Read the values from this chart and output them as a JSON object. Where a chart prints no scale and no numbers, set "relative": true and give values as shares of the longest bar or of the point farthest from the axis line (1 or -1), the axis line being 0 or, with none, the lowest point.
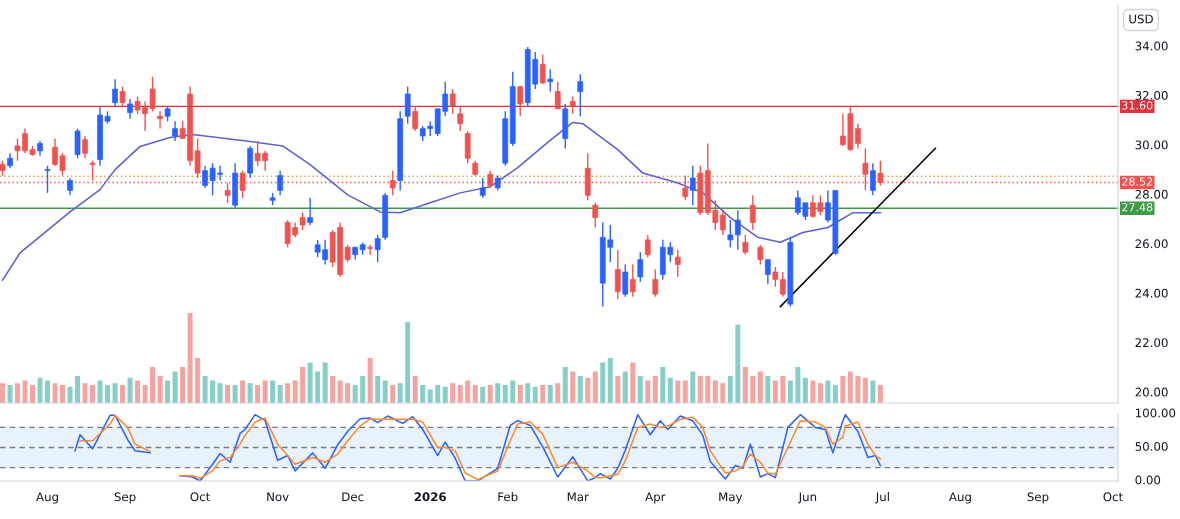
{
  "chart_data": [
    {
      "type": "candlestick",
      "tick_labels": "y",
      "xlim": [
        "2025-07-13",
        "2026-10-03"
      ],
      "ylim": [
        19.6,
        35.7
      ],
      "yticks": [
        {
          "value": 20,
          "label": "20.00"
        },
        {
          "value": 22,
          "label": "22.00"
        },
        {
          "value": 24,
          "label": "24.00"
        },
        {
          "value": 26,
          "label": "26.00"
        },
        {
          "value": 28,
          "label": "28.00"
        },
        {
          "value": 30,
          "label": "30.00"
        },
        {
          "value": 32,
          "label": "32.00"
        },
        {
          "value": 34,
          "label": "34.00"
        }
      ],
      "annotations": [
        "USD"
      ],
      "x": [
        "2025-07-14",
        "2025-07-17",
        "2025-07-20",
        "2025-07-23",
        "2025-07-26",
        "2025-07-29",
        "2025-08-01",
        "2025-08-04",
        "2025-08-07",
        "2025-08-10",
        "2025-08-13",
        "2025-08-16",
        "2025-08-19",
        "2025-08-22",
        "2025-08-25",
        "2025-08-28",
        "2025-08-31",
        "2025-09-03",
        "2025-09-06",
        "2025-09-09",
        "2025-09-12",
        "2025-09-15",
        "2025-09-18",
        "2025-09-21",
        "2025-09-24",
        "2025-09-27",
        "2025-09-30",
        "2025-10-03",
        "2025-10-06",
        "2025-10-09",
        "2025-10-12",
        "2025-10-15",
        "2025-10-18",
        "2025-10-21",
        "2025-10-24",
        "2025-10-27",
        "2025-10-30",
        "2025-11-02",
        "2025-11-05",
        "2025-11-08",
        "2025-11-11",
        "2025-11-14",
        "2025-11-17",
        "2025-11-20",
        "2025-11-23",
        "2025-11-26",
        "2025-11-29",
        "2025-12-02",
        "2025-12-05",
        "2025-12-08",
        "2025-12-11",
        "2025-12-14",
        "2025-12-17",
        "2025-12-20",
        "2025-12-23",
        "2025-12-26",
        "2025-12-29",
        "2026-01-01",
        "2026-01-04",
        "2026-01-07",
        "2026-01-10",
        "2026-01-13",
        "2026-01-16",
        "2026-01-19",
        "2026-01-22",
        "2026-01-25",
        "2026-01-28",
        "2026-01-31",
        "2026-02-03",
        "2026-02-06",
        "2026-02-09",
        "2026-02-12",
        "2026-02-15",
        "2026-02-18",
        "2026-02-21",
        "2026-02-24",
        "2026-02-27",
        "2026-03-02",
        "2026-03-05",
        "2026-03-08",
        "2026-03-11",
        "2026-03-14",
        "2026-03-17",
        "2026-03-20",
        "2026-03-23",
        "2026-03-26",
        "2026-03-29",
        "2026-04-01",
        "2026-04-04",
        "2026-04-07",
        "2026-04-10",
        "2026-04-13",
        "2026-04-16",
        "2026-04-19",
        "2026-04-22",
        "2026-04-25",
        "2026-04-28",
        "2026-05-01",
        "2026-05-04",
        "2026-05-07",
        "2026-05-10",
        "2026-05-13",
        "2026-05-16",
        "2026-05-19",
        "2026-05-22",
        "2026-05-25",
        "2026-05-28",
        "2026-05-31",
        "2026-06-03",
        "2026-06-06",
        "2026-06-09",
        "2026-06-12",
        "2026-06-15",
        "2026-06-18",
        "2026-06-21",
        "2026-06-24",
        "2026-06-27",
        "2026-06-30"
      ],
      "ohlc": [
        [
          29.25,
          29.4,
          28.8,
          29.0
        ],
        [
          29.2,
          29.7,
          29.1,
          29.5
        ],
        [
          30.0,
          30.3,
          29.4,
          29.8
        ],
        [
          30.5,
          30.7,
          29.7,
          29.8
        ],
        [
          29.85,
          30.0,
          29.6,
          29.65
        ],
        [
          29.8,
          30.2,
          29.6,
          30.1
        ],
        [
          29.0,
          29.2,
          28.1,
          29.05
        ],
        [
          29.95,
          30.3,
          29.2,
          29.25
        ],
        [
          29.6,
          29.7,
          28.8,
          29.0
        ],
        [
          28.2,
          28.7,
          28.0,
          28.6
        ],
        [
          29.65,
          30.7,
          29.5,
          30.6
        ],
        [
          30.25,
          30.4,
          29.5,
          29.7
        ],
        [
          29.3,
          29.4,
          28.6,
          29.25
        ],
        [
          29.45,
          31.6,
          29.2,
          31.25
        ],
        [
          31.0,
          31.4,
          30.9,
          31.2
        ],
        [
          31.75,
          32.7,
          31.6,
          32.3
        ],
        [
          32.2,
          32.4,
          31.6,
          31.75
        ],
        [
          31.35,
          31.9,
          31.1,
          31.7
        ],
        [
          31.8,
          32.0,
          31.3,
          31.45
        ],
        [
          31.55,
          31.8,
          30.6,
          31.3
        ],
        [
          32.3,
          32.8,
          31.4,
          31.5
        ],
        [
          31.2,
          31.4,
          30.7,
          31.1
        ],
        [
          31.2,
          31.6,
          31.0,
          31.5
        ],
        [
          30.4,
          31.0,
          30.2,
          30.7
        ],
        [
          30.7,
          31.0,
          30.3,
          30.3
        ],
        [
          32.1,
          32.4,
          29.2,
          29.4
        ],
        [
          29.8,
          30.3,
          28.7,
          28.9
        ],
        [
          28.4,
          29.2,
          28.3,
          29.0
        ],
        [
          28.6,
          29.3,
          28.0,
          29.1
        ],
        [
          28.85,
          29.2,
          28.6,
          28.9
        ],
        [
          28.2,
          28.5,
          27.7,
          28.0
        ],
        [
          27.6,
          29.3,
          27.5,
          28.9
        ],
        [
          28.9,
          29.0,
          27.9,
          28.2
        ],
        [
          28.9,
          30.0,
          28.7,
          29.9
        ],
        [
          29.7,
          30.2,
          29.2,
          29.4
        ],
        [
          29.7,
          29.8,
          29.0,
          29.4
        ],
        [
          27.8,
          28.1,
          27.6,
          27.9
        ],
        [
          28.2,
          29.0,
          28.0,
          28.8
        ],
        [
          26.9,
          27.0,
          25.9,
          26.05
        ],
        [
          26.7,
          26.9,
          26.3,
          26.4
        ],
        [
          27.1,
          27.3,
          26.6,
          26.8
        ],
        [
          26.9,
          27.9,
          26.8,
          27.1
        ],
        [
          25.7,
          26.2,
          25.5,
          26.0
        ],
        [
          25.4,
          26.2,
          25.2,
          25.8
        ],
        [
          26.5,
          26.6,
          25.1,
          25.3
        ],
        [
          26.7,
          26.9,
          24.7,
          24.8
        ],
        [
          25.9,
          26.0,
          25.3,
          25.4
        ],
        [
          25.6,
          25.9,
          25.4,
          25.9
        ],
        [
          25.8,
          26.1,
          25.6,
          26.0
        ],
        [
          25.9,
          26.0,
          25.6,
          25.85
        ],
        [
          25.8,
          26.4,
          25.3,
          26.25
        ],
        [
          26.3,
          28.1,
          26.2,
          28.0
        ],
        [
          28.6,
          29.0,
          28.0,
          28.3
        ],
        [
          28.6,
          31.4,
          28.2,
          31.1
        ],
        [
          31.2,
          32.4,
          30.9,
          32.1
        ],
        [
          31.4,
          31.6,
          30.6,
          30.7
        ],
        [
          30.4,
          30.8,
          30.2,
          30.7
        ],
        [
          30.7,
          31.0,
          30.4,
          30.8
        ],
        [
          30.5,
          31.5,
          30.4,
          31.5
        ],
        [
          31.4,
          32.6,
          31.2,
          32.1
        ],
        [
          32.1,
          32.3,
          31.3,
          31.6
        ],
        [
          31.3,
          31.6,
          30.6,
          30.9
        ],
        [
          30.5,
          30.6,
          29.3,
          29.5
        ],
        [
          29.3,
          29.4,
          28.8,
          28.85
        ],
        [
          28.0,
          28.7,
          27.9,
          28.3
        ],
        [
          28.85,
          29.0,
          28.3,
          28.4
        ],
        [
          28.3,
          28.8,
          28.2,
          28.7
        ],
        [
          29.3,
          31.4,
          29.2,
          31.1
        ],
        [
          30.1,
          33.0,
          30.0,
          32.4
        ],
        [
          32.4,
          32.4,
          31.2,
          31.7
        ],
        [
          31.75,
          34.0,
          31.6,
          33.9
        ],
        [
          32.5,
          33.8,
          32.3,
          33.5
        ],
        [
          33.3,
          33.7,
          32.5,
          32.55
        ],
        [
          32.6,
          33.1,
          32.2,
          32.7
        ],
        [
          32.2,
          32.6,
          31.5,
          31.5
        ],
        [
          30.3,
          31.7,
          29.9,
          31.5
        ],
        [
          31.8,
          32.0,
          31.3,
          31.6
        ],
        [
          32.2,
          32.9,
          31.2,
          32.6
        ],
        [
          29.1,
          29.7,
          27.8,
          28.0
        ],
        [
          27.6,
          27.7,
          26.7,
          27.1
        ],
        [
          24.45,
          26.9,
          23.5,
          26.3
        ],
        [
          25.9,
          26.8,
          25.3,
          26.2
        ],
        [
          25.0,
          25.8,
          23.8,
          24.1
        ],
        [
          24.0,
          25.2,
          23.9,
          24.9
        ],
        [
          24.6,
          25.2,
          23.9,
          24.1
        ],
        [
          24.7,
          25.7,
          24.5,
          25.4
        ],
        [
          26.2,
          26.4,
          25.5,
          25.6
        ],
        [
          24.6,
          25.0,
          23.9,
          24.0
        ],
        [
          24.8,
          26.2,
          24.6,
          25.9
        ],
        [
          25.6,
          26.1,
          25.3,
          25.9
        ],
        [
          25.5,
          25.8,
          24.7,
          25.2
        ],
        [
          28.3,
          28.8,
          27.8,
          27.95
        ],
        [
          28.2,
          29.2,
          27.6,
          28.7
        ],
        [
          28.9,
          29.2,
          27.2,
          27.3
        ],
        [
          29.0,
          30.1,
          27.2,
          27.3
        ],
        [
          27.4,
          27.8,
          26.6,
          26.9
        ],
        [
          27.2,
          27.4,
          26.4,
          26.6
        ],
        [
          26.2,
          27.0,
          25.9,
          26.4
        ],
        [
          26.4,
          27.4,
          25.8,
          27.0
        ],
        [
          26.1,
          26.4,
          25.6,
          25.7
        ],
        [
          27.6,
          28.0,
          26.6,
          26.9
        ],
        [
          25.9,
          26.0,
          25.2,
          25.4
        ],
        [
          24.8,
          25.4,
          24.4,
          25.4
        ],
        [
          24.9,
          25.1,
          24.3,
          24.6
        ],
        [
          24.6,
          24.9,
          23.9,
          24.0
        ],
        [
          23.6,
          26.3,
          23.5,
          26.1
        ],
        [
          27.3,
          28.2,
          27.2,
          27.9
        ],
        [
          27.15,
          27.7,
          27.0,
          27.7
        ],
        [
          27.7,
          28.0,
          27.1,
          27.15
        ],
        [
          27.7,
          28.0,
          27.2,
          27.35
        ],
        [
          27.0,
          28.2,
          26.9,
          27.7
        ],
        [
          25.65,
          28.2,
          25.6,
          28.2
        ],
        [
          30.4,
          31.3,
          30.0,
          30.05
        ],
        [
          31.3,
          31.6,
          29.8,
          29.85
        ],
        [
          30.7,
          30.9,
          29.9,
          30.1
        ],
        [
          29.3,
          29.9,
          28.2,
          28.85
        ],
        [
          28.2,
          29.3,
          28.0,
          29.0
        ],
        [
          28.9,
          29.4,
          28.4,
          28.52
        ]
      ],
      "colors": [
        "#ef5350",
        "#2962ff",
        "#ef5350",
        "#ef5350",
        "#ef5350",
        "#2962ff",
        "#2962ff",
        "#ef5350",
        "#ef5350",
        "#2962ff",
        "#2962ff",
        "#ef5350",
        "#ef5350",
        "#2962ff",
        "#2962ff",
        "#2962ff",
        "#ef5350",
        "#2962ff",
        "#ef5350",
        "#ef5350",
        "#ef5350",
        "#ef5350",
        "#2962ff",
        "#2962ff",
        "#ef5350",
        "#ef5350",
        "#ef5350",
        "#2962ff",
        "#2962ff",
        "#2962ff",
        "#ef5350",
        "#2962ff",
        "#ef5350",
        "#2962ff",
        "#ef5350",
        "#ef5350",
        "#2962ff",
        "#2962ff",
        "#ef5350",
        "#ef5350",
        "#ef5350",
        "#2962ff",
        "#2962ff",
        "#2962ff",
        "#ef5350",
        "#ef5350",
        "#ef5350",
        "#2962ff",
        "#2962ff",
        "#ef5350",
        "#2962ff",
        "#2962ff",
        "#ef5350",
        "#2962ff",
        "#2962ff",
        "#ef5350",
        "#2962ff",
        "#2962ff",
        "#2962ff",
        "#2962ff",
        "#ef5350",
        "#ef5350",
        "#ef5350",
        "#ef5350",
        "#2962ff",
        "#ef5350",
        "#2962ff",
        "#2962ff",
        "#2962ff",
        "#ef5350",
        "#2962ff",
        "#2962ff",
        "#ef5350",
        "#2962ff",
        "#ef5350",
        "#2962ff",
        "#ef5350",
        "#2962ff",
        "#ef5350",
        "#ef5350",
        "#2962ff",
        "#2962ff",
        "#ef5350",
        "#2962ff",
        "#ef5350",
        "#2962ff",
        "#ef5350",
        "#ef5350",
        "#2962ff",
        "#2962ff",
        "#ef5350",
        "#ef5350",
        "#2962ff",
        "#ef5350",
        "#ef5350",
        "#ef5350",
        "#ef5350",
        "#2962ff",
        "#2962ff",
        "#ef5350",
        "#ef5350",
        "#ef5350",
        "#2962ff",
        "#ef5350",
        "#ef5350",
        "#2962ff",
        "#2962ff",
        "#2962ff",
        "#ef5350",
        "#ef5350",
        "#2962ff",
        "#2962ff",
        "#ef5350",
        "#ef5350",
        "#ef5350",
        "#ef5350",
        "#2962ff",
        "#ef5350"
      ],
      "series": [
        {
          "type": "line",
          "color": "#5b5fd9",
          "x": [
            "2025-07-14",
            "2025-07-21",
            "2025-08-10",
            "2025-08-22",
            "2025-08-28",
            "2025-09-07",
            "2025-09-19",
            "2025-09-28",
            "2025-10-21",
            "2025-11-03",
            "2025-11-14",
            "2025-11-29",
            "2025-12-12",
            "2025-12-20",
            "2026-01-01",
            "2026-01-13",
            "2026-01-25",
            "2026-02-05",
            "2026-02-17",
            "2026-02-27",
            "2026-03-03",
            "2026-03-17",
            "2026-03-27",
            "2026-04-10",
            "2026-04-20",
            "2026-05-01",
            "2026-05-12",
            "2026-05-21",
            "2026-05-30",
            "2026-06-09",
            "2026-06-19",
            "2026-06-30"
          ],
          "values": [
            24.57,
            25.67,
            27.33,
            28.23,
            29.04,
            29.98,
            30.34,
            30.46,
            30.18,
            30.0,
            29.24,
            28.02,
            27.33,
            27.3,
            27.7,
            28.1,
            28.35,
            29.12,
            30.14,
            30.95,
            30.9,
            29.85,
            28.9,
            28.5,
            28.1,
            27.1,
            26.3,
            26.1,
            26.5,
            26.7,
            27.3,
            27.3
          ]
        },
        {
          "type": "line",
          "color": "#000000",
          "x": [
            "2026-05-21",
            "2026-07-22"
          ],
          "values": [
            23.5,
            29.9
          ]
        }
      ],
      "ref_lines": [
        {
          "axis": "y",
          "value": 31.6,
          "label": "31.60",
          "color": "#e0323c"
        },
        {
          "axis": "y",
          "value": 28.77,
          "color": "#f0a050",
          "line_style": "dotted"
        },
        {
          "axis": "y",
          "value": 28.52,
          "label": "28.52",
          "color": "#ef5350",
          "line_style": "dotted"
        },
        {
          "axis": "y",
          "value": 27.48,
          "label": "27.48",
          "color": "#3d9a47"
        }
      ]
    },
    {
      "type": "bar",
      "relative": true,
      "tick_labels": false,
      "xlim": [
        "2025-07-13",
        "2026-10-03"
      ],
      "x": [
        "2025-07-14",
        "2025-07-17",
        "2025-07-20",
        "2025-07-23",
        "2025-07-26",
        "2025-07-29",
        "2025-08-01",
        "2025-08-04",
        "2025-08-07",
        "2025-08-10",
        "2025-08-13",
        "2025-08-16",
        "2025-08-19",
        "2025-08-22",
        "2025-08-25",
        "2025-08-28",
        "2025-08-31",
        "2025-09-03",
        "2025-09-06",
        "2025-09-09",
        "2025-09-12",
        "2025-09-15",
        "2025-09-18",
        "2025-09-21",
        "2025-09-24",
        "2025-09-27",
        "2025-09-30",
        "2025-10-03",
        "2025-10-06",
        "2025-10-09",
        "2025-10-12",
        "2025-10-15",
        "2025-10-18",
        "2025-10-21",
        "2025-10-24",
        "2025-10-27",
        "2025-10-30",
        "2025-11-02",
        "2025-11-05",
        "2025-11-08",
        "2025-11-11",
        "2025-11-14",
        "2025-11-17",
        "2025-11-20",
        "2025-11-23",
        "2025-11-26",
        "2025-11-29",
        "2025-12-02",
        "2025-12-05",
        "2025-12-08",
        "2025-12-11",
        "2025-12-14",
        "2025-12-17",
        "2025-12-20",
        "2025-12-23",
        "2025-12-26",
        "2025-12-29",
        "2026-01-01",
        "2026-01-04",
        "2026-01-07",
        "2026-01-10",
        "2026-01-13",
        "2026-01-16",
        "2026-01-19",
        "2026-01-22",
        "2026-01-25",
        "2026-01-28",
        "2026-01-31",
        "2026-02-03",
        "2026-02-06",
        "2026-02-09",
        "2026-02-12",
        "2026-02-15",
        "2026-02-18",
        "2026-02-21",
        "2026-02-24",
        "2026-02-27",
        "2026-03-02",
        "2026-03-05",
        "2026-03-08",
        "2026-03-11",
        "2026-03-14",
        "2026-03-17",
        "2026-03-20",
        "2026-03-23",
        "2026-03-26",
        "2026-03-29",
        "2026-04-01",
        "2026-04-04",
        "2026-04-07",
        "2026-04-10",
        "2026-04-13",
        "2026-04-16",
        "2026-04-19",
        "2026-04-22",
        "2026-04-25",
        "2026-04-28",
        "2026-05-01",
        "2026-05-04",
        "2026-05-07",
        "2026-05-10",
        "2026-05-13",
        "2026-05-16",
        "2026-05-19",
        "2026-05-22",
        "2026-05-25",
        "2026-05-28",
        "2026-05-31",
        "2026-06-03",
        "2026-06-06",
        "2026-06-09",
        "2026-06-12",
        "2026-06-15",
        "2026-06-18",
        "2026-06-21",
        "2026-06-24",
        "2026-06-27",
        "2026-06-30"
      ],
      "values": [
        0.22,
        0.2,
        0.22,
        0.25,
        0.2,
        0.28,
        0.25,
        0.22,
        0.2,
        0.18,
        0.3,
        0.22,
        0.2,
        0.25,
        0.2,
        0.22,
        0.2,
        0.28,
        0.25,
        0.2,
        0.4,
        0.3,
        0.25,
        0.35,
        0.4,
        1.0,
        0.5,
        0.3,
        0.25,
        0.22,
        0.2,
        0.2,
        0.25,
        0.22,
        0.2,
        0.25,
        0.25,
        0.2,
        0.22,
        0.25,
        0.4,
        0.45,
        0.35,
        0.45,
        0.3,
        0.25,
        0.22,
        0.2,
        0.3,
        0.5,
        0.3,
        0.25,
        0.2,
        0.22,
        0.9,
        0.3,
        0.2,
        0.15,
        0.2,
        0.18,
        0.22,
        0.2,
        0.25,
        0.2,
        0.18,
        0.2,
        0.22,
        0.2,
        0.25,
        0.2,
        0.22,
        0.18,
        0.2,
        0.2,
        0.22,
        0.4,
        0.35,
        0.3,
        0.28,
        0.35,
        0.45,
        0.5,
        0.3,
        0.35,
        0.45,
        0.3,
        0.25,
        0.3,
        0.4,
        0.28,
        0.25,
        0.25,
        0.35,
        0.3,
        0.3,
        0.25,
        0.22,
        0.3,
        0.87,
        0.4,
        0.3,
        0.35,
        0.3,
        0.25,
        0.3,
        0.25,
        0.4,
        0.28,
        0.25,
        0.22,
        0.25,
        0.2,
        0.3,
        0.35,
        0.3,
        0.28,
        0.25,
        0.2
      ],
      "colors": [
        "#f5a3a1",
        "#86cfc6",
        "#f5a3a1",
        "#f5a3a1",
        "#f5a3a1",
        "#86cfc6",
        "#86cfc6",
        "#f5a3a1",
        "#f5a3a1",
        "#86cfc6",
        "#86cfc6",
        "#f5a3a1",
        "#f5a3a1",
        "#86cfc6",
        "#86cfc6",
        "#86cfc6",
        "#f5a3a1",
        "#86cfc6",
        "#f5a3a1",
        "#f5a3a1",
        "#f5a3a1",
        "#f5a3a1",
        "#86cfc6",
        "#86cfc6",
        "#f5a3a1",
        "#f5a3a1",
        "#f5a3a1",
        "#86cfc6",
        "#86cfc6",
        "#86cfc6",
        "#f5a3a1",
        "#86cfc6",
        "#f5a3a1",
        "#86cfc6",
        "#f5a3a1",
        "#f5a3a1",
        "#86cfc6",
        "#86cfc6",
        "#f5a3a1",
        "#f5a3a1",
        "#f5a3a1",
        "#86cfc6",
        "#86cfc6",
        "#86cfc6",
        "#f5a3a1",
        "#f5a3a1",
        "#f5a3a1",
        "#86cfc6",
        "#86cfc6",
        "#f5a3a1",
        "#86cfc6",
        "#86cfc6",
        "#f5a3a1",
        "#86cfc6",
        "#86cfc6",
        "#f5a3a1",
        "#86cfc6",
        "#86cfc6",
        "#86cfc6",
        "#86cfc6",
        "#f5a3a1",
        "#f5a3a1",
        "#f5a3a1",
        "#f5a3a1",
        "#86cfc6",
        "#f5a3a1",
        "#86cfc6",
        "#86cfc6",
        "#86cfc6",
        "#f5a3a1",
        "#86cfc6",
        "#86cfc6",
        "#f5a3a1",
        "#86cfc6",
        "#f5a3a1",
        "#86cfc6",
        "#f5a3a1",
        "#86cfc6",
        "#f5a3a1",
        "#f5a3a1",
        "#86cfc6",
        "#86cfc6",
        "#f5a3a1",
        "#86cfc6",
        "#f5a3a1",
        "#86cfc6",
        "#f5a3a1",
        "#f5a3a1",
        "#86cfc6",
        "#86cfc6",
        "#f5a3a1",
        "#f5a3a1",
        "#86cfc6",
        "#f5a3a1",
        "#f5a3a1",
        "#f5a3a1",
        "#f5a3a1",
        "#86cfc6",
        "#86cfc6",
        "#f5a3a1",
        "#f5a3a1",
        "#f5a3a1",
        "#86cfc6",
        "#f5a3a1",
        "#f5a3a1",
        "#86cfc6",
        "#86cfc6",
        "#86cfc6",
        "#f5a3a1",
        "#f5a3a1",
        "#86cfc6",
        "#86cfc6",
        "#f5a3a1",
        "#f5a3a1",
        "#f5a3a1",
        "#f5a3a1",
        "#86cfc6",
        "#f5a3a1"
      ]
    },
    {
      "type": "line",
      "xlim": [
        "2025-07-13",
        "2026-10-03"
      ],
      "ylim": [
        0,
        100
      ],
      "yticks": [
        {
          "value": 0,
          "label": "0.00"
        },
        {
          "value": 50,
          "label": "50.00"
        },
        {
          "value": 100,
          "label": "100.00"
        }
      ],
      "xticks": [
        {
          "value": "2025-08-01",
          "label": "Aug"
        },
        {
          "value": "2025-09-01",
          "label": "Sep"
        },
        {
          "value": "2025-10-01",
          "label": "Oct"
        },
        {
          "value": "2025-11-01",
          "label": "Nov"
        },
        {
          "value": "2025-12-01",
          "label": "Dec"
        },
        {
          "value": "2026-01-01",
          "label": "2026"
        },
        {
          "value": "2026-02-01",
          "label": "Feb"
        },
        {
          "value": "2026-03-01",
          "label": "Mar"
        },
        {
          "value": "2026-04-01",
          "label": "Apr"
        },
        {
          "value": "2026-05-01",
          "label": "May"
        },
        {
          "value": "2026-06-01",
          "label": "Jun"
        },
        {
          "value": "2026-07-01",
          "label": "Jul"
        },
        {
          "value": "2026-08-01",
          "label": "Aug"
        },
        {
          "value": "2026-09-01",
          "label": "Sep"
        },
        {
          "value": "2026-10-01",
          "label": "Oct"
        }
      ],
      "x": [
        "2025-08-12",
        "2025-08-14",
        "2025-08-19",
        "2025-08-26",
        "2025-08-28",
        "2025-09-02",
        "2025-09-05",
        "2025-09-11",
        "2025-09-17",
        "2025-09-23",
        "2025-09-28",
        "2025-10-01",
        "2025-10-06",
        "2025-10-09",
        "2025-10-13",
        "2025-10-17",
        "2025-10-19",
        "2025-10-23",
        "2025-10-27",
        "2025-11-01",
        "2025-11-05",
        "2025-11-08",
        "2025-11-15",
        "2025-11-20",
        "2025-11-25",
        "2025-11-29",
        "2025-12-04",
        "2025-12-08",
        "2025-12-11",
        "2025-12-15",
        "2025-12-21",
        "2025-12-25",
        "2025-12-29",
        "2026-01-04",
        "2026-01-07",
        "2026-01-11",
        "2026-01-15",
        "2026-01-20",
        "2026-01-28",
        "2026-02-02",
        "2026-02-05",
        "2026-02-10",
        "2026-02-15",
        "2026-02-21",
        "2026-02-27",
        "2026-03-05",
        "2026-03-08",
        "2026-03-10",
        "2026-03-14",
        "2026-03-17",
        "2026-03-20",
        "2026-03-25",
        "2026-03-30",
        "2026-04-03",
        "2026-04-06",
        "2026-04-11",
        "2026-04-16",
        "2026-04-20",
        "2026-04-23",
        "2026-04-29",
        "2026-05-03",
        "2026-05-06",
        "2026-05-09",
        "2026-05-13",
        "2026-05-16",
        "2026-05-19",
        "2026-05-24",
        "2026-05-29",
        "2026-06-04",
        "2026-06-08",
        "2026-06-11",
        "2026-06-15",
        "2026-06-16",
        "2026-06-21",
        "2026-06-25",
        "2026-06-28",
        "2026-06-30"
      ],
      "series": [
        {
          "color": "#2962ff",
          "values": [
            45,
            69,
            48,
            98,
            98,
            62,
            45,
            42,
            null,
            8,
            6,
            0,
            25,
            41,
            28,
            71,
            77,
            99,
            90,
            31,
            38,
            15,
            42,
            19,
            54,
            74,
            93,
            94,
            87,
            97,
            86,
            96,
            77,
            38,
            58,
            34,
            0,
            0,
            19,
            83,
            90,
            83,
            51,
            6,
            36,
            0,
            5,
            11,
            3,
            19,
            46,
            99,
            69,
            90,
            77,
            97,
            90,
            68,
            29,
            3,
            23,
            19,
            55,
            6,
            11,
            5,
            80,
            99,
            80,
            77,
            42,
            90,
            99,
            74,
            35,
            38,
            23
          ]
        },
        {
          "color": "#ff8a2b",
          "values": [
            null,
            60,
            60,
            85,
            98,
            80,
            55,
            44,
            null,
            8,
            8,
            4,
            15,
            30,
            35,
            55,
            68,
            88,
            94,
            55,
            38,
            25,
            35,
            28,
            40,
            60,
            82,
            93,
            92,
            92,
            92,
            92,
            88,
            50,
            50,
            45,
            12,
            2,
            15,
            60,
            85,
            88,
            70,
            20,
            28,
            15,
            5,
            5,
            8,
            10,
            30,
            80,
            85,
            80,
            82,
            92,
            95,
            80,
            45,
            12,
            15,
            22,
            40,
            28,
            12,
            10,
            50,
            90,
            88,
            80,
            55,
            65,
            82,
            88,
            55,
            38,
            33
          ]
        }
      ],
      "bands": [
        {
          "axis": "y",
          "from": 20,
          "to": 80,
          "color": "#e8f2fd"
        }
      ],
      "ref_lines": [
        {
          "axis": "y",
          "value": 80,
          "color": "#787b86",
          "line_style": "dashed"
        },
        {
          "axis": "y",
          "value": 50,
          "color": "#787b86",
          "line_style": "dashed"
        },
        {
          "axis": "y",
          "value": 20,
          "color": "#787b86",
          "line_style": "dashed"
        }
      ]
    }
  ]
}
